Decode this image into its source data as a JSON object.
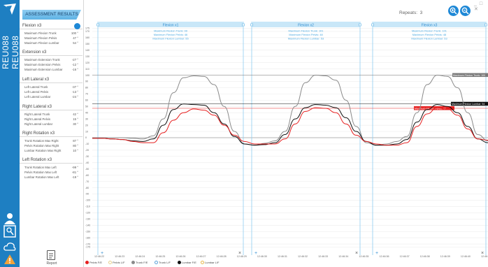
{
  "app": {
    "patient_id": "REU088 REU088",
    "window_controls": "_ □ ✕"
  },
  "panel": {
    "title": "ASSESSMENT RESULTS",
    "sections": [
      {
        "title": "Flexion x3",
        "rows": [
          {
            "label": "Maximum Flexion Trunk",
            "value": "100 °"
          },
          {
            "label": "Maximum Flexion Pelvis",
            "value": "47 °"
          },
          {
            "label": "Maximum Flexion Lumbar",
            "value": "54 °"
          }
        ]
      },
      {
        "title": "Extension x3",
        "rows": [
          {
            "label": "Maximum Extension Trunk",
            "value": "-27 °"
          },
          {
            "label": "Maximum Extension Pelvis",
            "value": "-12 °"
          },
          {
            "label": "Maximum Extension Lumbar",
            "value": "-16 °"
          }
        ]
      },
      {
        "title": "Left Lateral x3",
        "rows": [
          {
            "label": "Left Lateral Trunk",
            "value": "-37 °"
          },
          {
            "label": "Left Lateral Pelvis",
            "value": "-13 °"
          },
          {
            "label": "Left Lateral Lumbar",
            "value": "-24 °"
          }
        ]
      },
      {
        "title": "Right Lateral x3",
        "rows": [
          {
            "label": "Right Lateral Trunk",
            "value": "42 °"
          },
          {
            "label": "Right Lateral Pelvis",
            "value": "15 °"
          },
          {
            "label": "Right Lateral Lumbar",
            "value": "30 °"
          }
        ]
      },
      {
        "title": "Right Rotation x3",
        "rows": [
          {
            "label": "Trunk Rotation Max Right",
            "value": "87 °"
          },
          {
            "label": "Pelvis Rotation Max Right",
            "value": "80 °"
          },
          {
            "label": "Lumbar Rotation Max Right",
            "value": "10 °"
          }
        ]
      },
      {
        "title": "Left Rotation x3",
        "rows": [
          {
            "label": "Trunk Rotation Max Left",
            "value": "-99 °"
          },
          {
            "label": "Pelvis Rotation Max Left",
            "value": "-81 °"
          },
          {
            "label": "Lumbar Rotation Max Left",
            "value": "-19 °"
          }
        ]
      }
    ],
    "report_label": "Report"
  },
  "toolbar": {
    "repeats_label": "Repeats:",
    "repeats_value": "3"
  },
  "reps": [
    {
      "title": "Flexion x1",
      "l1": "Maximum Flexion Trunk: 99",
      "l2": "Maximum Flexion Pelvis: 46",
      "l3": "Maximum Flexion Lumbar: 55"
    },
    {
      "title": "Flexion x2",
      "l1": "Maximum Flexion Trunk: 101",
      "l2": "Maximum Flexion Pelvis: 48",
      "l3": "Maximum Flexion Lumbar: 53"
    },
    {
      "title": "Flexion x3",
      "l1": "Maximum Flexion Trunk: 101",
      "l2": "Maximum Flexion Pelvis: 48",
      "l3": "Maximum Flexion Lumbar: 53"
    }
  ],
  "chart_data": {
    "type": "line",
    "ylim": [
      -180,
      180
    ],
    "yticks": [
      175,
      170,
      160,
      150,
      140,
      130,
      120,
      110,
      100,
      90,
      80,
      70,
      60,
      50,
      40,
      30,
      20,
      10,
      0,
      -10,
      -20,
      -30,
      -40,
      -50,
      -60,
      -70,
      -80,
      -90,
      -100,
      -110,
      -120,
      -130,
      -140,
      -150,
      -160,
      -170,
      -175
    ],
    "xlabels": [
      "12:46:22",
      "12:46:23",
      "12:46:24",
      "12:46:25",
      "12:46:26",
      "12:46:27",
      "12:46:28",
      "12:46:29",
      "12:46:30",
      "12:46:31",
      "12:46:32",
      "12:46:33",
      "12:46:34",
      "12:46:35",
      "12:46:36",
      "12:46:37",
      "12:46:38",
      "12:46:39",
      "12:46:40",
      "12:46:41"
    ],
    "markers": [
      {
        "label": "Maximum Flexion Trunk: 100",
        "value": 100,
        "color": "#7a7a7a"
      },
      {
        "label": "Maximum Flexion Lumbar: 54",
        "value": 54,
        "color": "#111111"
      },
      {
        "label": "Maximum Flexion Pelvis: 47",
        "value": 47,
        "color": "#e62020"
      }
    ],
    "series": [
      {
        "name": "Trunk F/E",
        "color": "#8a8a8a",
        "y": [
          0,
          0,
          0,
          0,
          -1,
          -2,
          3,
          30,
          72,
          96,
          99,
          98,
          85,
          50,
          10,
          -10,
          -12,
          -9,
          -5,
          10,
          50,
          88,
          100,
          99,
          92,
          60,
          18,
          -8,
          -12,
          -10,
          -6,
          2,
          40,
          85,
          100,
          98,
          80,
          40,
          5,
          -5
        ]
      },
      {
        "name": "Lumbar F/E",
        "color": "#111111",
        "y": [
          -1,
          -1,
          -2,
          -3,
          -5,
          -6,
          -2,
          20,
          45,
          54,
          53,
          52,
          40,
          22,
          2,
          -10,
          -12,
          -11,
          -8,
          5,
          30,
          48,
          53,
          52,
          48,
          32,
          10,
          -6,
          -12,
          -12,
          -10,
          -3,
          25,
          45,
          53,
          50,
          40,
          18,
          -2,
          -8
        ]
      },
      {
        "name": "Pelvis F/E",
        "color": "#e62020",
        "y": [
          -1,
          -1,
          -2,
          -3,
          -6,
          -8,
          -8,
          8,
          28,
          40,
          46,
          44,
          36,
          20,
          4,
          -6,
          -10,
          -10,
          -10,
          -2,
          22,
          42,
          48,
          47,
          40,
          22,
          4,
          -6,
          -10,
          -12,
          -12,
          -8,
          18,
          38,
          48,
          46,
          36,
          14,
          -2,
          -4
        ]
      }
    ],
    "legend": [
      {
        "label": "Pelvis F/E",
        "color": "#e62020",
        "filled": true
      },
      {
        "label": "Pelvis L/F",
        "color": "#e8d08a",
        "filled": false
      },
      {
        "label": "Trunk F/E",
        "color": "#8a8a8a",
        "filled": true
      },
      {
        "label": "Trunk L/F",
        "color": "#5aa0d8",
        "filled": false
      },
      {
        "label": "Lumbar F/E",
        "color": "#111111",
        "filled": true
      },
      {
        "label": "Lumbar L/F",
        "color": "#e8b84a",
        "filled": false
      }
    ]
  }
}
